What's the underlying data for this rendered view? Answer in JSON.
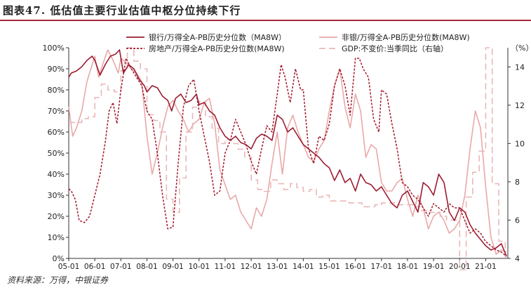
{
  "header": {
    "title": "图表47. 低估值主要行业估值中枢分位持续下行"
  },
  "footer": {
    "source": "资料来源：万得，中银证券"
  },
  "colors": {
    "bank": "#9b1b30",
    "nonbank": "#eaa8a8",
    "realestate": "#a3182b",
    "gdp": "#e9b8b8",
    "rule": "#a8283a"
  },
  "chart_data": {
    "type": "line",
    "title": "低估值主要行业估值中枢分位持续下行",
    "x_ticks": [
      "05-01",
      "06-01",
      "07-01",
      "08-01",
      "09-01",
      "10-01",
      "11-01",
      "12-01",
      "13-01",
      "14-01",
      "15-01",
      "16-01",
      "17-01",
      "18-01",
      "19-01",
      "20-01",
      "21-01"
    ],
    "x_range": [
      2005.0,
      2021.85
    ],
    "y_left": {
      "ticks": [
        "0%",
        "10%",
        "20%",
        "30%",
        "40%",
        "50%",
        "60%",
        "70%",
        "80%",
        "90%",
        "100%"
      ],
      "range": [
        0,
        100
      ]
    },
    "y_right": {
      "unit": "（%）",
      "ticks": [
        "4",
        "6",
        "8",
        "10",
        "12",
        "14"
      ],
      "range": [
        4,
        15
      ]
    },
    "legend": [
      {
        "key": "bank",
        "label": "银行/万得全A-PB历史分位数（MA8W）"
      },
      {
        "key": "nonbank",
        "label": "非银/万得全A-PB历史分位数(MA8W)"
      },
      {
        "key": "realestate",
        "label": "房地产/万得全A-PB历史分位数(MA8W)"
      },
      {
        "key": "gdp",
        "label": "GDP:不变价:当季同比（右轴）"
      }
    ],
    "series": [
      {
        "name": "银行/万得全A-PB历史分位数（MA8W）",
        "key": "bank",
        "axis": "left",
        "x": [
          2005.0,
          2005.1,
          2005.3,
          2005.5,
          2005.7,
          2005.9,
          2006.0,
          2006.2,
          2006.4,
          2006.6,
          2006.8,
          2006.95,
          2007.1,
          2007.3,
          2007.5,
          2007.7,
          2007.9,
          2008.0,
          2008.2,
          2008.4,
          2008.6,
          2008.8,
          2008.95,
          2009.1,
          2009.3,
          2009.5,
          2009.7,
          2009.9,
          2010.0,
          2010.2,
          2010.4,
          2010.6,
          2010.8,
          2011.0,
          2011.2,
          2011.4,
          2011.6,
          2011.8,
          2012.0,
          2012.2,
          2012.4,
          2012.6,
          2012.8,
          2013.0,
          2013.2,
          2013.4,
          2013.6,
          2013.8,
          2014.0,
          2014.2,
          2014.4,
          2014.6,
          2014.8,
          2015.0,
          2015.2,
          2015.4,
          2015.6,
          2015.8,
          2016.0,
          2016.2,
          2016.4,
          2016.6,
          2016.8,
          2017.0,
          2017.2,
          2017.4,
          2017.6,
          2017.8,
          2018.0,
          2018.2,
          2018.4,
          2018.6,
          2018.8,
          2019.0,
          2019.2,
          2019.4,
          2019.6,
          2019.8,
          2020.0,
          2020.2,
          2020.4,
          2020.6,
          2020.8,
          2021.0,
          2021.2,
          2021.4,
          2021.6,
          2021.8
        ],
        "y": [
          86,
          88,
          89,
          91,
          94,
          96,
          94,
          87,
          92,
          96,
          97,
          99,
          88,
          92,
          90,
          85,
          82,
          79,
          82,
          81,
          77,
          75,
          70,
          76,
          78,
          74,
          75,
          78,
          73,
          74,
          70,
          68,
          62,
          58,
          56,
          58,
          55,
          54,
          52,
          57,
          59,
          58,
          56,
          68,
          66,
          60,
          62,
          58,
          54,
          52,
          50,
          48,
          45,
          43,
          37,
          42,
          36,
          38,
          32,
          40,
          36,
          35,
          32,
          34,
          30,
          26,
          24,
          30,
          32,
          27,
          22,
          36,
          34,
          30,
          40,
          36,
          22,
          18,
          24,
          22,
          16,
          12,
          9,
          6,
          4,
          5,
          7,
          1
        ]
      },
      {
        "name": "非银/万得全A-PB历史分位数(MA8W)",
        "key": "nonbank",
        "axis": "left",
        "x": [
          2005.0,
          2005.15,
          2005.3,
          2005.5,
          2005.7,
          2005.9,
          2006.0,
          2006.15,
          2006.3,
          2006.5,
          2006.7,
          2006.9,
          2007.0,
          2007.2,
          2007.4,
          2007.6,
          2007.8,
          2008.0,
          2008.2,
          2008.4,
          2008.6,
          2008.8,
          2009.0,
          2009.2,
          2009.4,
          2009.6,
          2009.8,
          2010.0,
          2010.2,
          2010.4,
          2010.6,
          2010.8,
          2011.0,
          2011.2,
          2011.4,
          2011.6,
          2011.8,
          2012.0,
          2012.2,
          2012.4,
          2012.6,
          2012.8,
          2013.0,
          2013.2,
          2013.4,
          2013.6,
          2013.8,
          2014.0,
          2014.2,
          2014.4,
          2014.6,
          2014.8,
          2015.0,
          2015.2,
          2015.4,
          2015.6,
          2015.8,
          2016.0,
          2016.2,
          2016.4,
          2016.6,
          2016.8,
          2017.0,
          2017.2,
          2017.4,
          2017.6,
          2017.8,
          2018.0,
          2018.2,
          2018.4,
          2018.6,
          2018.8,
          2019.0,
          2019.2,
          2019.4,
          2019.6,
          2019.8,
          2020.0,
          2020.2,
          2020.4,
          2020.6,
          2020.8,
          2021.0,
          2021.2,
          2021.4,
          2021.6,
          2021.8
        ],
        "y": [
          72,
          58,
          62,
          70,
          84,
          92,
          96,
          86,
          92,
          99,
          94,
          88,
          95,
          93,
          90,
          88,
          84,
          58,
          40,
          50,
          62,
          72,
          75,
          70,
          66,
          60,
          64,
          66,
          74,
          76,
          64,
          42,
          35,
          28,
          30,
          22,
          18,
          14,
          24,
          20,
          28,
          45,
          60,
          40,
          62,
          68,
          60,
          54,
          48,
          46,
          52,
          56,
          70,
          82,
          90,
          72,
          62,
          78,
          70,
          48,
          54,
          52,
          36,
          32,
          32,
          36,
          38,
          28,
          20,
          30,
          24,
          14,
          20,
          22,
          18,
          12,
          14,
          18,
          30,
          52,
          70,
          62,
          34,
          10,
          2,
          4,
          3
        ]
      },
      {
        "name": "房地产/万得全A-PB历史分位数(MA8W)",
        "key": "realestate",
        "axis": "left",
        "x": [
          2005.0,
          2005.1,
          2005.25,
          2005.4,
          2005.6,
          2005.8,
          2006.0,
          2006.2,
          2006.4,
          2006.55,
          2006.7,
          2006.85,
          2007.0,
          2007.2,
          2007.4,
          2007.6,
          2007.8,
          2008.0,
          2008.2,
          2008.4,
          2008.6,
          2008.8,
          2009.0,
          2009.2,
          2009.4,
          2009.6,
          2009.8,
          2010.0,
          2010.2,
          2010.4,
          2010.6,
          2010.8,
          2011.0,
          2011.2,
          2011.4,
          2011.6,
          2011.8,
          2012.0,
          2012.2,
          2012.4,
          2012.6,
          2012.8,
          2013.0,
          2013.15,
          2013.3,
          2013.5,
          2013.7,
          2013.9,
          2014.0,
          2014.2,
          2014.4,
          2014.6,
          2014.8,
          2015.0,
          2015.2,
          2015.4,
          2015.6,
          2015.8,
          2016.0,
          2016.15,
          2016.3,
          2016.5,
          2016.7,
          2016.9,
          2017.0,
          2017.2,
          2017.4,
          2017.6,
          2017.8,
          2018.0,
          2018.2,
          2018.4,
          2018.6,
          2018.8,
          2019.0,
          2019.2,
          2019.4,
          2019.6,
          2019.8,
          2020.0,
          2020.2,
          2020.4,
          2020.6,
          2020.8,
          2021.0,
          2021.2,
          2021.4,
          2021.6,
          2021.8
        ],
        "y": [
          33,
          32,
          28,
          18,
          17,
          20,
          30,
          40,
          55,
          70,
          74,
          64,
          80,
          95,
          90,
          86,
          82,
          70,
          66,
          50,
          30,
          14,
          15,
          45,
          72,
          82,
          85,
          70,
          58,
          46,
          30,
          32,
          50,
          56,
          66,
          60,
          54,
          46,
          40,
          52,
          63,
          60,
          78,
          92,
          86,
          74,
          90,
          80,
          80,
          52,
          45,
          58,
          56,
          64,
          82,
          90,
          82,
          68,
          95,
          95,
          90,
          86,
          66,
          60,
          80,
          78,
          64,
          52,
          36,
          34,
          30,
          28,
          24,
          20,
          26,
          24,
          22,
          26,
          24,
          24,
          18,
          12,
          14,
          12,
          8,
          6,
          4,
          3,
          1
        ]
      },
      {
        "name": "GDP:不变价:当季同比（右轴）",
        "key": "gdp",
        "axis": "right",
        "step": true,
        "x": [
          2005.0,
          2005.25,
          2005.5,
          2005.75,
          2006.0,
          2006.25,
          2006.5,
          2006.75,
          2007.0,
          2007.25,
          2007.5,
          2007.75,
          2008.0,
          2008.25,
          2008.5,
          2008.75,
          2009.0,
          2009.25,
          2009.5,
          2009.75,
          2010.0,
          2010.25,
          2010.5,
          2010.75,
          2011.0,
          2011.25,
          2011.5,
          2011.75,
          2012.0,
          2012.25,
          2012.5,
          2012.75,
          2013.0,
          2013.25,
          2013.5,
          2013.75,
          2014.0,
          2014.25,
          2014.5,
          2014.75,
          2015.0,
          2015.25,
          2015.5,
          2015.75,
          2016.0,
          2016.25,
          2016.5,
          2016.75,
          2017.0,
          2017.25,
          2017.5,
          2017.75,
          2018.0,
          2018.25,
          2018.5,
          2018.75,
          2019.0,
          2019.25,
          2019.5,
          2019.75,
          2020.0,
          2020.25,
          2020.5,
          2020.75,
          2021.0,
          2021.25,
          2021.5,
          2021.75
        ],
        "y": [
          11.1,
          11.1,
          11.3,
          11.4,
          12.4,
          13.1,
          12.8,
          12.7,
          13.8,
          15.0,
          14.3,
          13.9,
          11.5,
          11.2,
          10.6,
          7.1,
          6.4,
          8.2,
          10.6,
          11.9,
          12.2,
          11.4,
          10.8,
          10.0,
          10.2,
          10.0,
          9.7,
          9.3,
          8.1,
          7.6,
          7.5,
          8.1,
          7.9,
          7.6,
          7.9,
          7.7,
          7.5,
          7.6,
          7.2,
          7.3,
          7.0,
          7.0,
          7.0,
          6.9,
          6.9,
          6.7,
          6.7,
          6.8,
          6.9,
          6.9,
          6.8,
          6.8,
          6.8,
          6.7,
          6.5,
          6.4,
          6.4,
          6.2,
          6.0,
          6.0,
          3.4,
          7.2,
          8.5,
          9.6,
          15.0,
          7.9,
          4.9,
          4.0
        ]
      }
    ]
  }
}
